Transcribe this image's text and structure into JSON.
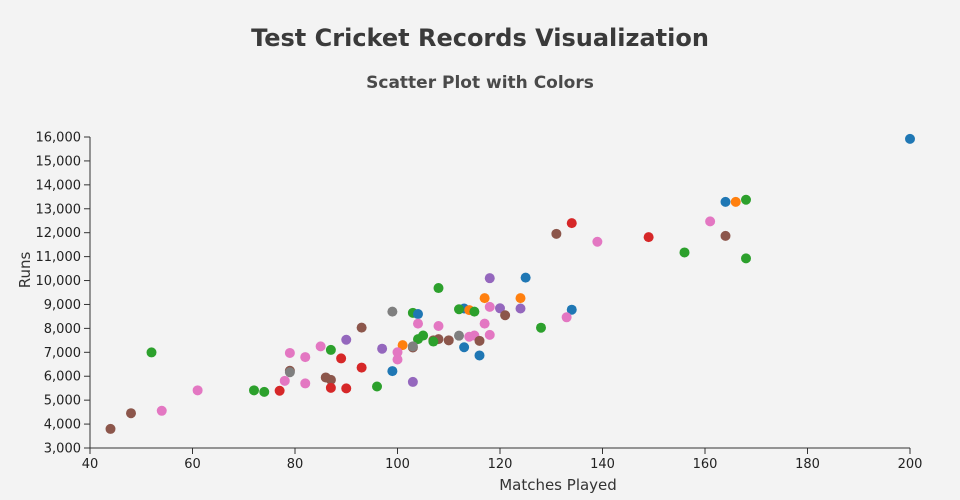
{
  "chart_data": {
    "type": "scatter",
    "title": "Test Cricket Records Visualization",
    "subtitle": "Scatter Plot with Colors",
    "xlabel": "Matches Played",
    "ylabel": "Runs",
    "xlim": [
      40,
      200
    ],
    "ylim": [
      3000,
      16000
    ],
    "x_ticks": [
      40,
      60,
      80,
      100,
      120,
      140,
      160,
      180,
      200
    ],
    "y_ticks": [
      3000,
      4000,
      5000,
      6000,
      7000,
      8000,
      9000,
      10000,
      11000,
      12000,
      13000,
      14000,
      15000,
      16000
    ],
    "x_tick_labels": [
      "40",
      "60",
      "80",
      "100",
      "120",
      "140",
      "160",
      "180",
      "200"
    ],
    "y_tick_labels": [
      "3,000",
      "4,000",
      "5,000",
      "6,000",
      "7,000",
      "8,000",
      "9,000",
      "10,000",
      "11,000",
      "12,000",
      "13,000",
      "14,000",
      "15,000",
      "16,000"
    ],
    "grid": false,
    "legend": "none",
    "colors": {
      "blue": "#1f77b4",
      "orange": "#ff7f0e",
      "green": "#2ca02c",
      "red": "#d62728",
      "purple": "#9467bd",
      "brown": "#8c564b",
      "pink": "#e377c2",
      "gray": "#7f7f7f"
    },
    "points": [
      {
        "x": 200,
        "y": 15921,
        "color": "blue"
      },
      {
        "x": 164,
        "y": 13288,
        "color": "blue"
      },
      {
        "x": 166,
        "y": 13289,
        "color": "orange"
      },
      {
        "x": 168,
        "y": 13378,
        "color": "green"
      },
      {
        "x": 161,
        "y": 12472,
        "color": "pink"
      },
      {
        "x": 134,
        "y": 12400,
        "color": "red"
      },
      {
        "x": 131,
        "y": 11953,
        "color": "brown"
      },
      {
        "x": 164,
        "y": 11867,
        "color": "brown"
      },
      {
        "x": 149,
        "y": 11814,
        "color": "red"
      },
      {
        "x": 139,
        "y": 11621,
        "color": "pink"
      },
      {
        "x": 156,
        "y": 11174,
        "color": "green"
      },
      {
        "x": 168,
        "y": 10927,
        "color": "green"
      },
      {
        "x": 118,
        "y": 10099,
        "color": "purple"
      },
      {
        "x": 125,
        "y": 10122,
        "color": "blue"
      },
      {
        "x": 108,
        "y": 9686,
        "color": "green"
      },
      {
        "x": 117,
        "y": 9265,
        "color": "orange"
      },
      {
        "x": 124,
        "y": 9265,
        "color": "orange"
      },
      {
        "x": 134,
        "y": 8781,
        "color": "blue"
      },
      {
        "x": 124,
        "y": 8832,
        "color": "purple"
      },
      {
        "x": 120,
        "y": 8840,
        "color": "purple"
      },
      {
        "x": 118,
        "y": 8900,
        "color": "pink"
      },
      {
        "x": 113,
        "y": 8830,
        "color": "blue"
      },
      {
        "x": 114,
        "y": 8765,
        "color": "orange"
      },
      {
        "x": 112,
        "y": 8800,
        "color": "green"
      },
      {
        "x": 115,
        "y": 8700,
        "color": "green"
      },
      {
        "x": 99,
        "y": 8700,
        "color": "gray"
      },
      {
        "x": 103,
        "y": 8650,
        "color": "green"
      },
      {
        "x": 104,
        "y": 8600,
        "color": "blue"
      },
      {
        "x": 121,
        "y": 8550,
        "color": "brown"
      },
      {
        "x": 133,
        "y": 8463,
        "color": "pink"
      },
      {
        "x": 117,
        "y": 8200,
        "color": "pink"
      },
      {
        "x": 104,
        "y": 8200,
        "color": "pink"
      },
      {
        "x": 108,
        "y": 8100,
        "color": "pink"
      },
      {
        "x": 128,
        "y": 8029,
        "color": "green"
      },
      {
        "x": 93,
        "y": 8032,
        "color": "brown"
      },
      {
        "x": 118,
        "y": 7728,
        "color": "pink"
      },
      {
        "x": 115,
        "y": 7700,
        "color": "pink"
      },
      {
        "x": 112,
        "y": 7696,
        "color": "gray"
      },
      {
        "x": 114,
        "y": 7650,
        "color": "pink"
      },
      {
        "x": 105,
        "y": 7700,
        "color": "green"
      },
      {
        "x": 104,
        "y": 7550,
        "color": "green"
      },
      {
        "x": 108,
        "y": 7550,
        "color": "brown"
      },
      {
        "x": 107,
        "y": 7500,
        "color": "brown"
      },
      {
        "x": 107,
        "y": 7450,
        "color": "green"
      },
      {
        "x": 110,
        "y": 7500,
        "color": "brown"
      },
      {
        "x": 116,
        "y": 7480,
        "color": "brown"
      },
      {
        "x": 90,
        "y": 7525,
        "color": "purple"
      },
      {
        "x": 113,
        "y": 7212,
        "color": "blue"
      },
      {
        "x": 101,
        "y": 7300,
        "color": "orange"
      },
      {
        "x": 103,
        "y": 7200,
        "color": "brown"
      },
      {
        "x": 103,
        "y": 7250,
        "color": "gray"
      },
      {
        "x": 85,
        "y": 7249,
        "color": "pink"
      },
      {
        "x": 97,
        "y": 7150,
        "color": "purple"
      },
      {
        "x": 87,
        "y": 7100,
        "color": "green"
      },
      {
        "x": 100,
        "y": 7000,
        "color": "pink"
      },
      {
        "x": 79,
        "y": 6973,
        "color": "pink"
      },
      {
        "x": 52,
        "y": 6996,
        "color": "green"
      },
      {
        "x": 116,
        "y": 6868,
        "color": "blue"
      },
      {
        "x": 82,
        "y": 6800,
        "color": "pink"
      },
      {
        "x": 89,
        "y": 6744,
        "color": "red"
      },
      {
        "x": 100,
        "y": 6700,
        "color": "pink"
      },
      {
        "x": 93,
        "y": 6361,
        "color": "red"
      },
      {
        "x": 79,
        "y": 6227,
        "color": "brown"
      },
      {
        "x": 79,
        "y": 6167,
        "color": "gray"
      },
      {
        "x": 99,
        "y": 6215,
        "color": "blue"
      },
      {
        "x": 86,
        "y": 5949,
        "color": "brown"
      },
      {
        "x": 87,
        "y": 5850,
        "color": "brown"
      },
      {
        "x": 78,
        "y": 5807,
        "color": "pink"
      },
      {
        "x": 103,
        "y": 5762,
        "color": "purple"
      },
      {
        "x": 82,
        "y": 5700,
        "color": "pink"
      },
      {
        "x": 96,
        "y": 5570,
        "color": "green"
      },
      {
        "x": 87,
        "y": 5515,
        "color": "red"
      },
      {
        "x": 90,
        "y": 5492,
        "color": "red"
      },
      {
        "x": 72,
        "y": 5410,
        "color": "green"
      },
      {
        "x": 74,
        "y": 5345,
        "color": "green"
      },
      {
        "x": 77,
        "y": 5392,
        "color": "red"
      },
      {
        "x": 61,
        "y": 5410,
        "color": "pink"
      },
      {
        "x": 54,
        "y": 4555,
        "color": "pink"
      },
      {
        "x": 48,
        "y": 4455,
        "color": "brown"
      },
      {
        "x": 44,
        "y": 3798,
        "color": "brown"
      }
    ]
  }
}
